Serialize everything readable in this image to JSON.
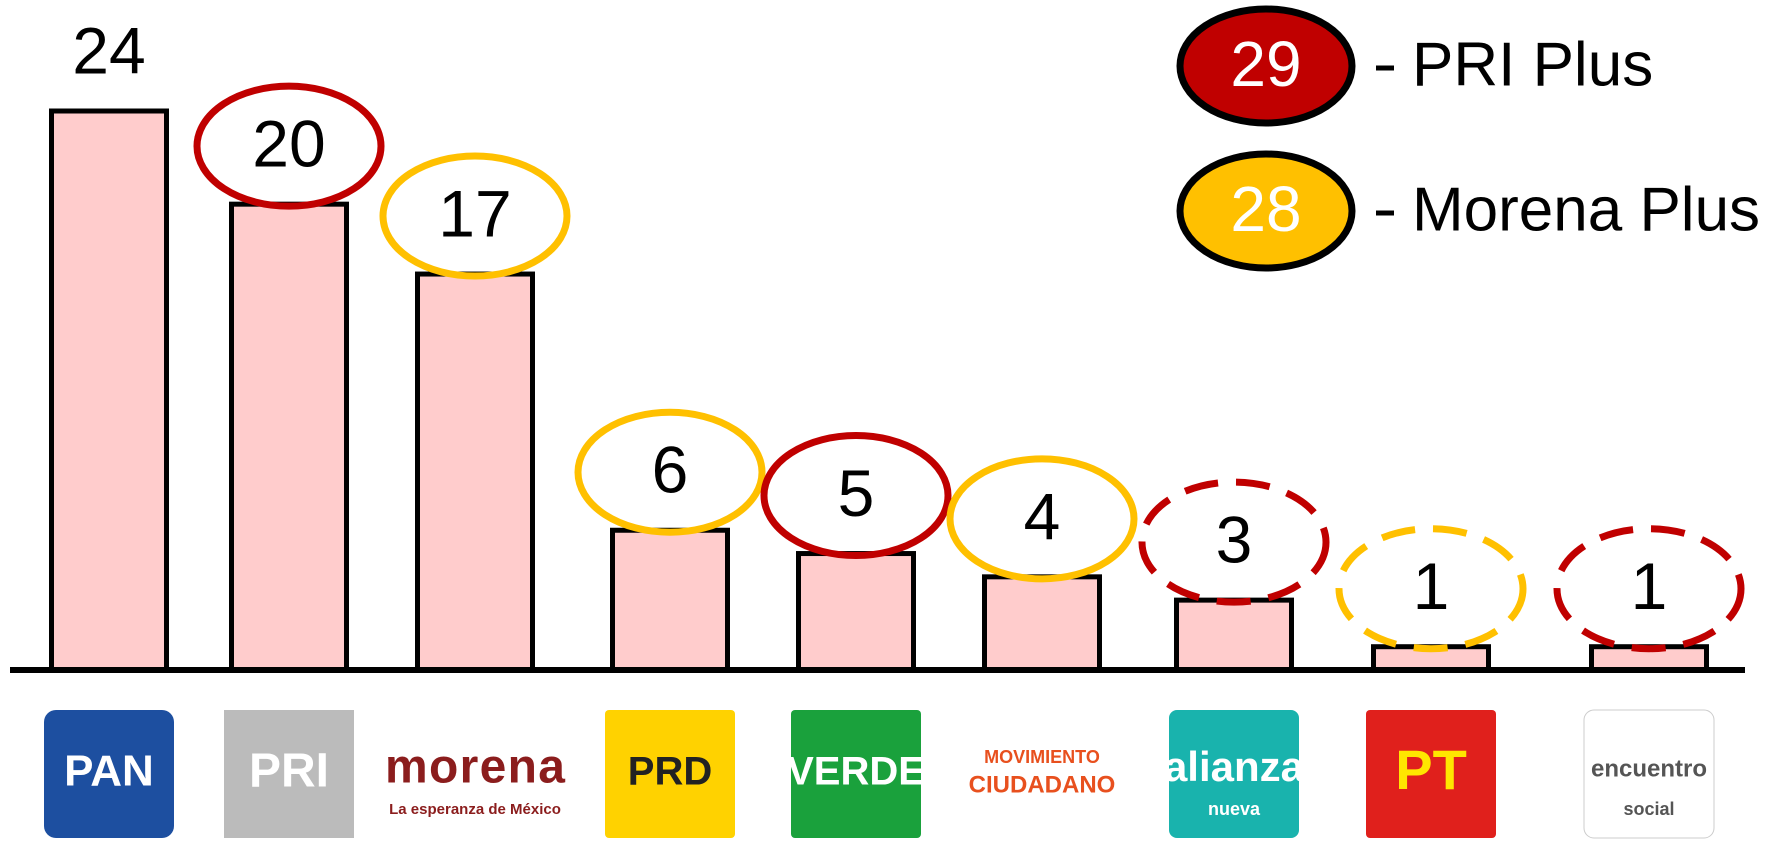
{
  "chart_data": {
    "type": "bar",
    "categories": [
      "PAN",
      "PRI",
      "morena",
      "PRD",
      "VERDE",
      "CIUDADANO",
      "alianza",
      "PT",
      "encuentro"
    ],
    "category_taglines": [
      null,
      null,
      "La esperanza de México",
      null,
      null,
      "MOVIMIENTO",
      "nueva",
      null,
      "social"
    ],
    "values": [
      24,
      20,
      17,
      6,
      5,
      4,
      3,
      1,
      1
    ],
    "color": "#ffcccc",
    "ylim": [
      0,
      24
    ],
    "rings": [
      null,
      0,
      1,
      1,
      0,
      1,
      0,
      1,
      0
    ],
    "ring_dashed": [
      false,
      false,
      false,
      false,
      false,
      false,
      true,
      true,
      true
    ],
    "legend": [
      {
        "name": "PRI Plus",
        "value": 29,
        "color": "#c00000"
      },
      {
        "name": "Morena Plus",
        "value": 28,
        "color": "#ffc000"
      }
    ]
  }
}
